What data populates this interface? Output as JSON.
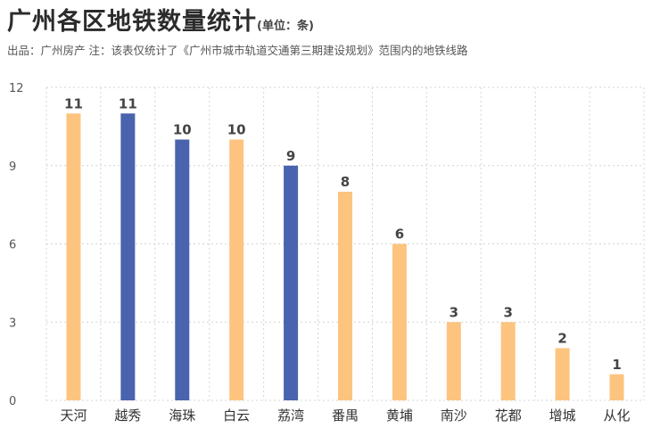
{
  "header": {
    "title": "广州各区地铁数量统计",
    "unit": "(单位：条)",
    "subtitle": "出品：广州房产   注：该表仅统计了《广州市城市轨道交通第三期建设规划》范围内的地铁线路"
  },
  "colors": {
    "orange": "#FDC47F",
    "blue": "#4A63AE",
    "grid": "#d4d4d4"
  },
  "chart_data": {
    "type": "bar",
    "title": "广州各区地铁数量统计",
    "unit": "(单位：条)",
    "categories": [
      "天河",
      "越秀",
      "海珠",
      "白云",
      "荔湾",
      "番禺",
      "黄埔",
      "南沙",
      "花都",
      "增城",
      "从化"
    ],
    "values": [
      11,
      11,
      10,
      10,
      9,
      8,
      6,
      3,
      3,
      2,
      1
    ],
    "bar_colors": [
      "orange",
      "blue",
      "blue",
      "orange",
      "blue",
      "orange",
      "orange",
      "orange",
      "orange",
      "orange",
      "orange"
    ],
    "yticks": [
      0,
      3,
      6,
      9,
      12
    ],
    "ylim": [
      0,
      12
    ],
    "grid": true,
    "legend": false
  }
}
